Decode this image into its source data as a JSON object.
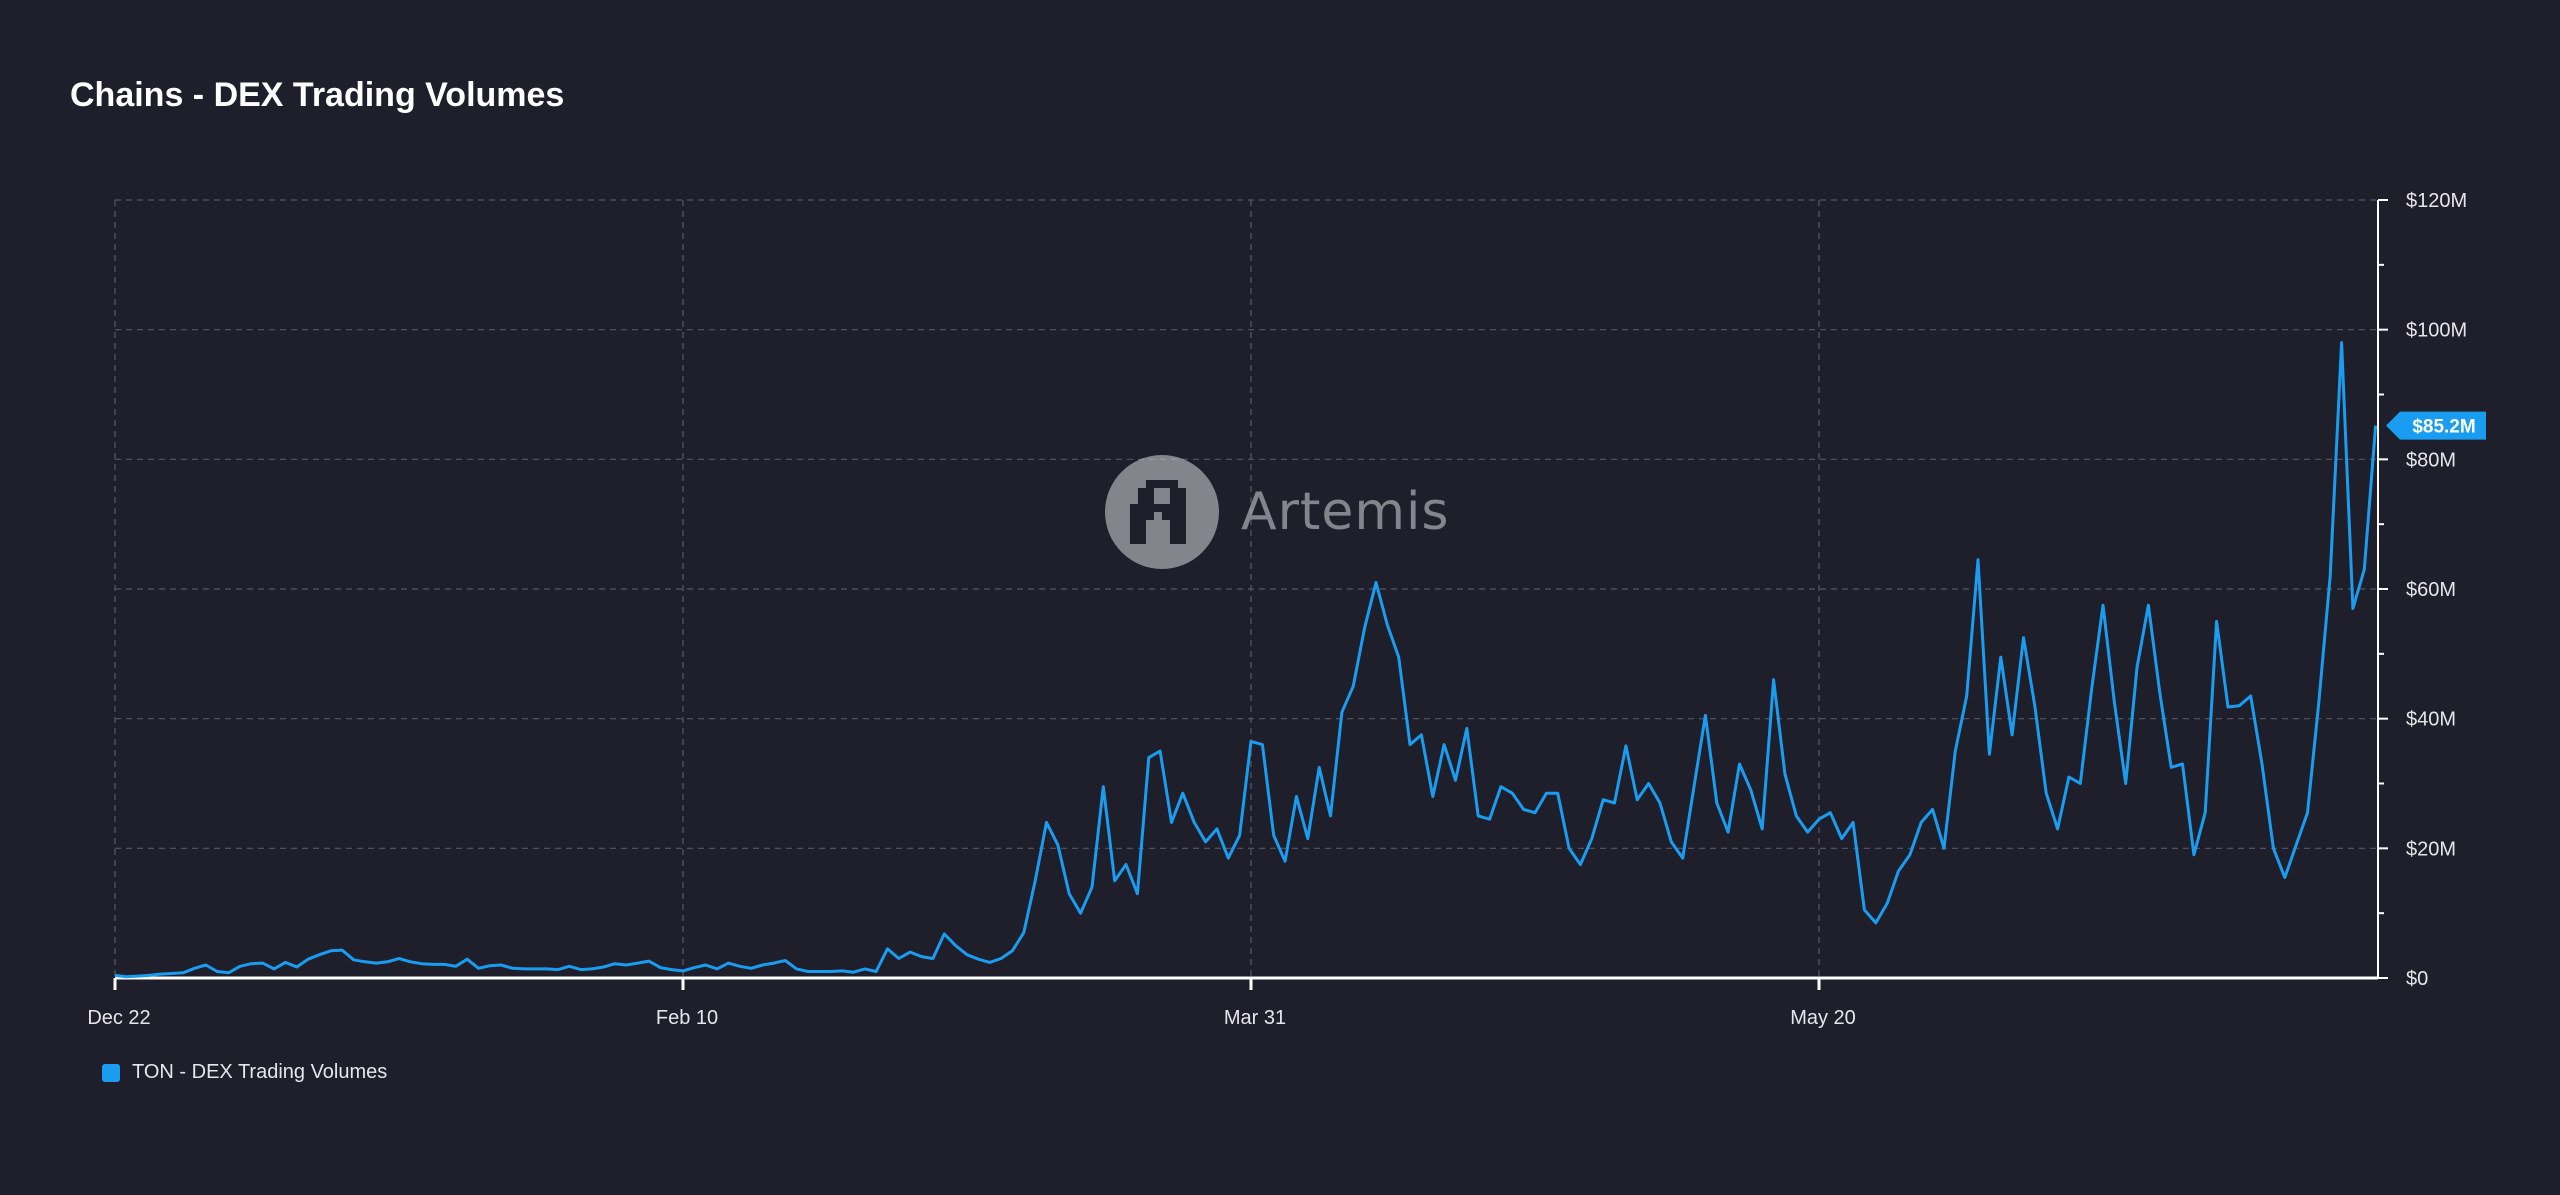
{
  "title": "Chains - DEX Trading Volumes",
  "watermark": {
    "text": "Artemis",
    "icon": "artemis-logo-icon"
  },
  "colors": {
    "background": "#1e1f2a",
    "series": "#1a9cf0",
    "grid": "#55586a",
    "axis": "#ffffff"
  },
  "chart_data": {
    "type": "line",
    "title": "Chains - DEX Trading Volumes",
    "xlabel": "",
    "ylabel": "",
    "ylim": [
      0,
      120
    ],
    "y_unit": "M USD",
    "y_ticks": [
      {
        "value": 0,
        "label": "$0"
      },
      {
        "value": 20,
        "label": "$20M"
      },
      {
        "value": 40,
        "label": "$40M"
      },
      {
        "value": 60,
        "label": "$60M"
      },
      {
        "value": 80,
        "label": "$80M"
      },
      {
        "value": 100,
        "label": "$100M"
      },
      {
        "value": 120,
        "label": "$120M"
      }
    ],
    "x_ticks": [
      {
        "index": 0,
        "label": "Dec 22"
      },
      {
        "index": 50,
        "label": "Feb 10"
      },
      {
        "index": 100,
        "label": "Mar 31"
      },
      {
        "index": 150,
        "label": "May 20"
      }
    ],
    "last_value_label": "$85.2M",
    "legend": "bottom-left",
    "grid": true,
    "series": [
      {
        "name": "TON - DEX Trading Volumes",
        "color": "#1a9cf0",
        "values": [
          0.4,
          0.2,
          0.3,
          0.4,
          0.6,
          0.7,
          0.8,
          1.5,
          2.0,
          1.0,
          0.8,
          1.8,
          2.2,
          2.3,
          1.4,
          2.4,
          1.7,
          2.9,
          3.6,
          4.2,
          4.3,
          2.8,
          2.5,
          2.3,
          2.5,
          3.0,
          2.5,
          2.2,
          2.1,
          2.1,
          1.8,
          2.9,
          1.5,
          1.9,
          2.0,
          1.5,
          1.4,
          1.4,
          1.4,
          1.3,
          1.8,
          1.3,
          1.4,
          1.7,
          2.2,
          2.0,
          2.3,
          2.6,
          1.6,
          1.3,
          1.1,
          1.6,
          2.0,
          1.4,
          2.3,
          1.8,
          1.5,
          2.0,
          2.3,
          2.7,
          1.4,
          1.0,
          1.0,
          1.0,
          1.1,
          0.9,
          1.4,
          1.0,
          4.5,
          3.0,
          4.0,
          3.3,
          3.0,
          6.8,
          5.0,
          3.6,
          2.9,
          2.4,
          3.0,
          4.2,
          7.0,
          15.0,
          24.0,
          20.5,
          13.0,
          10.0,
          14.0,
          29.5,
          15.0,
          17.5,
          13.0,
          34.0,
          35.0,
          24.0,
          28.5,
          24.0,
          21.0,
          23.0,
          18.5,
          22.0,
          36.5,
          36.0,
          22.0,
          18.0,
          28.0,
          21.5,
          32.5,
          25.0,
          41.0,
          45.0,
          54.0,
          61.0,
          54.5,
          49.5,
          36.0,
          37.5,
          28.0,
          36.0,
          30.5,
          38.5,
          25.0,
          24.5,
          29.5,
          28.5,
          26.0,
          25.5,
          28.5,
          28.5,
          20.0,
          17.5,
          21.5,
          27.5,
          27.0,
          35.8,
          27.5,
          30.0,
          27.0,
          21.0,
          18.5,
          29.5,
          40.5,
          27.0,
          22.5,
          33.0,
          29.0,
          23.0,
          46.0,
          31.5,
          25.0,
          22.5,
          24.5,
          25.5,
          21.5,
          24.0,
          10.5,
          8.5,
          11.5,
          16.5,
          19.0,
          24.0,
          26.0,
          20.0,
          35.0,
          43.5,
          64.5,
          34.5,
          49.5,
          37.5,
          52.5,
          42.0,
          28.5,
          23.0,
          31.0,
          30.0,
          44.5,
          57.5,
          42.5,
          30.0,
          48.0,
          57.5,
          44.0,
          32.5,
          33.0,
          19.0,
          25.5,
          55.0,
          41.8,
          42.0,
          43.5,
          33.0,
          20.0,
          15.5,
          20.5,
          25.5,
          42.5,
          62.0,
          98.0,
          57.0,
          63.0,
          85.2
        ]
      }
    ]
  }
}
